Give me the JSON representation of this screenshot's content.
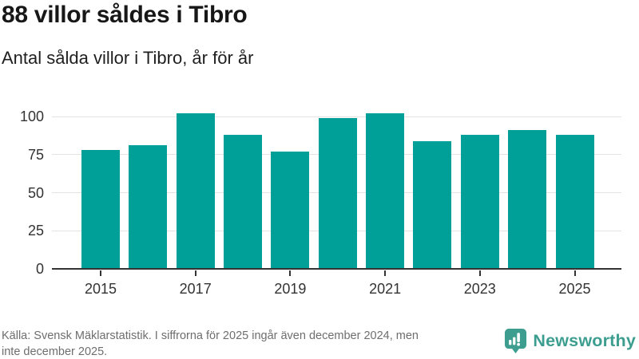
{
  "header": {
    "title": "88 villor såldes i Tibro",
    "subtitle": "Antal sålda villor i Tibro, år för år"
  },
  "chart_data": {
    "type": "bar",
    "title": "Antal sålda villor i Tibro, år för år",
    "categories": [
      "2015",
      "2016",
      "2017",
      "2018",
      "2019",
      "2020",
      "2021",
      "2022",
      "2023",
      "2024",
      "2025"
    ],
    "values": [
      78,
      81,
      102,
      88,
      77,
      99,
      102,
      84,
      88,
      91,
      88
    ],
    "xlabel": "",
    "ylabel": "",
    "ylim": [
      0,
      110
    ],
    "y_ticks": [
      0,
      25,
      50,
      75,
      100
    ],
    "x_tick_labels": [
      "2015",
      "2017",
      "2019",
      "2021",
      "2023",
      "2025"
    ],
    "grid": true,
    "legend": false,
    "bar_color": "#00A099"
  },
  "footer": {
    "source_line1": "Källa: Svensk Mäklarstatistik. I siffrorna för 2025 ingår även december 2024, men",
    "source_line2": "inte december 2025.",
    "brand_name": "Newsworthy"
  },
  "colors": {
    "bar": "#00A099",
    "axis": "#333333",
    "grid": "#e3e3e3",
    "brand": "#3D9E90",
    "muted_text": "#6e6e6e"
  }
}
